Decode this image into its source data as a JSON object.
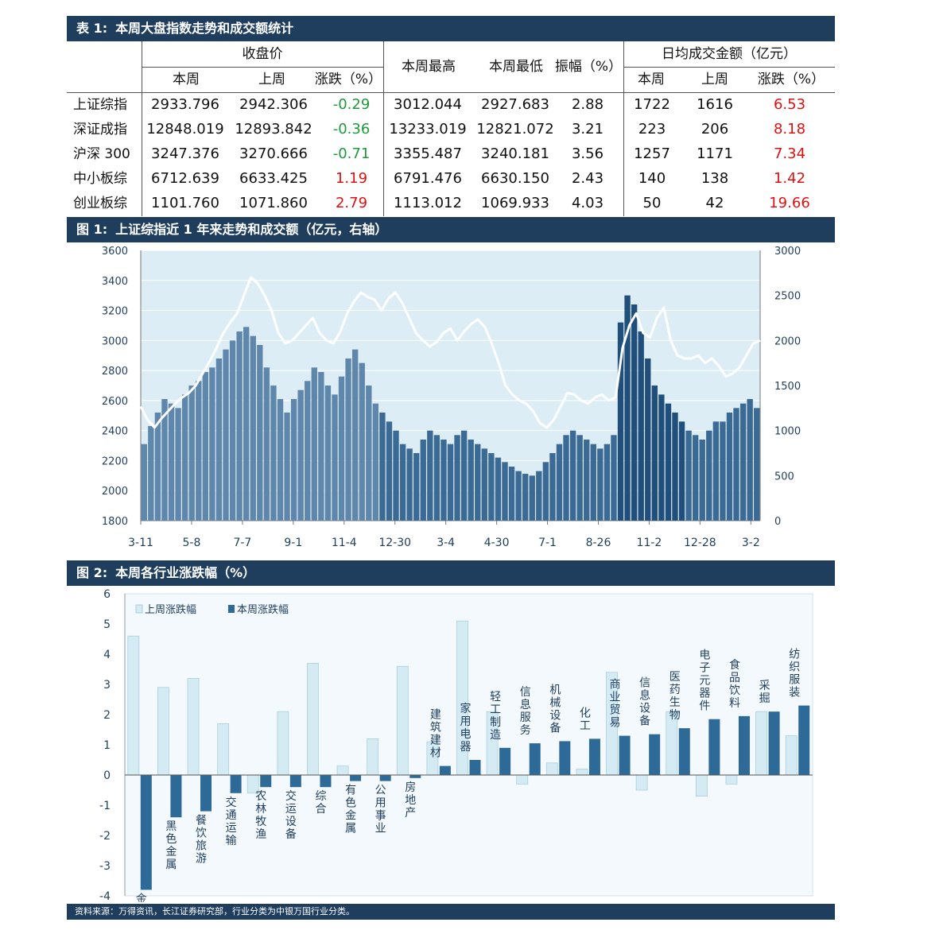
{
  "table1": {
    "title_num": "表 1:",
    "title": "本周大盘指数走势和成交额统计",
    "group_close": "收盘价",
    "group_high": "本周最高",
    "group_low": "本周最低",
    "group_amp": "振幅（%）",
    "group_vol": "日均成交金额（亿元）",
    "sub_this": "本周",
    "sub_last": "上周",
    "sub_chg": "涨跌（%）",
    "sub_vthis": "本周",
    "sub_vlast": "上周",
    "sub_vchg": "涨跌（%）",
    "rows": [
      {
        "name": "上证综指",
        "close": "2933.796",
        "last": "2942.306",
        "chg": "-0.29",
        "high": "3012.044",
        "low": "2927.683",
        "amp": "2.88",
        "vthis": "1722",
        "vlast": "1616",
        "vchg": "6.53"
      },
      {
        "name": "深证成指",
        "close": "12848.019",
        "last": "12893.842",
        "chg": "-0.36",
        "high": "13233.019",
        "low": "12821.072",
        "amp": "3.21",
        "vthis": "223",
        "vlast": "206",
        "vchg": "8.18"
      },
      {
        "name": "沪深 300",
        "close": "3247.376",
        "last": "3270.666",
        "chg": "-0.71",
        "high": "3355.487",
        "low": "3240.181",
        "amp": "3.56",
        "vthis": "1257",
        "vlast": "1171",
        "vchg": "7.34"
      },
      {
        "name": "中小板综",
        "close": "6712.639",
        "last": "6633.425",
        "chg": "1.19",
        "high": "6791.476",
        "low": "6630.150",
        "amp": "2.43",
        "vthis": "140",
        "vlast": "138",
        "vchg": "1.42"
      },
      {
        "name": "创业板综",
        "close": "1101.760",
        "last": "1071.860",
        "chg": "2.79",
        "high": "1113.012",
        "low": "1069.933",
        "amp": "4.03",
        "vthis": "50",
        "vlast": "42",
        "vchg": "19.66"
      }
    ]
  },
  "figure1": {
    "title_num": "图 1:",
    "title": "上证综指近 1 年来走势和成交额（亿元，右轴）"
  },
  "figure2": {
    "title_num": "图 2:",
    "title": "本周各行业涨跌幅（%）"
  },
  "footer": "资料来源：万得资讯，长江证券研究部，行业分类为中银万国行业分类。",
  "colors": {
    "header_bg": "#1f3e5e",
    "bar_dark": "#1f4f7a",
    "bar_light": "#c4e0ee",
    "plot_bg": "#dcedf5",
    "line": "#ffffff",
    "pos": "#e01010",
    "neg": "#1d9a3a"
  },
  "chart_data": [
    {
      "type": "line",
      "x_tick_labels": [
        "3-11",
        "5-8",
        "7-7",
        "9-1",
        "11-4",
        "12-30",
        "3-4",
        "4-30",
        "7-1",
        "8-26",
        "11-2",
        "12-28",
        "3-2"
      ],
      "ylim_left": [
        1800,
        3600
      ],
      "yticks_left": [
        1800,
        2000,
        2200,
        2400,
        2600,
        2800,
        3000,
        3200,
        3400,
        3600
      ],
      "ylim_right": [
        0,
        3000
      ],
      "yticks_right": [
        0,
        500,
        1000,
        1500,
        2000,
        2500,
        3000
      ],
      "grid": true,
      "series": [
        {
          "axis": "left",
          "values": [
            2560,
            2470,
            2420,
            2480,
            2530,
            2580,
            2620,
            2650,
            2700,
            2780,
            2860,
            2950,
            3050,
            3120,
            3180,
            3300,
            3420,
            3380,
            3300,
            3200,
            3050,
            2980,
            3000,
            3050,
            3100,
            3150,
            3050,
            3000,
            2980,
            3060,
            3180,
            3260,
            3320,
            3290,
            3270,
            3200,
            3280,
            3320,
            3250,
            3150,
            3050,
            3000,
            2960,
            2990,
            3050,
            3080,
            3000,
            3060,
            3110,
            3140,
            3090,
            2980,
            2850,
            2700,
            2640,
            2600,
            2580,
            2530,
            2450,
            2420,
            2470,
            2560,
            2650,
            2640,
            2600,
            2580,
            2620,
            2640,
            2600,
            2620,
            2950,
            3100,
            3180,
            3050,
            3020,
            3150,
            3220,
            3000,
            2900,
            2880,
            2880,
            2900,
            2850,
            2880,
            2830,
            2760,
            2780,
            2820,
            2900,
            2980,
            3000
          ]
        },
        {
          "type": "bar",
          "axis": "right",
          "values": [
            850,
            1050,
            1200,
            1350,
            1300,
            1250,
            1400,
            1500,
            1550,
            1650,
            1700,
            1800,
            1900,
            2000,
            2100,
            2150,
            2050,
            1950,
            1700,
            1500,
            1350,
            1200,
            1350,
            1450,
            1550,
            1700,
            1650,
            1500,
            1400,
            1600,
            1800,
            1900,
            1750,
            1500,
            1300,
            1200,
            1100,
            1000,
            850,
            800,
            750,
            900,
            1000,
            950,
            900,
            850,
            950,
            1000,
            900,
            850,
            800,
            750,
            700,
            650,
            600,
            550,
            520,
            500,
            550,
            650,
            750,
            850,
            950,
            1000,
            950,
            900,
            850,
            800,
            850,
            950,
            2200,
            2500,
            2400,
            2100,
            1800,
            1500,
            1400,
            1300,
            1200,
            1100,
            1000,
            950,
            900,
            1000,
            1100,
            1100,
            1200,
            1250,
            1300,
            1350,
            1250
          ]
        }
      ]
    },
    {
      "type": "bar",
      "legend": [
        "上周涨跌幅",
        "本周涨跌幅"
      ],
      "legend_position": "top-left",
      "ylim": [
        -4,
        6
      ],
      "yticks": [
        -4,
        -3,
        -2,
        -1,
        0,
        1,
        2,
        3,
        4,
        5,
        6
      ],
      "categories": [
        "金融服务",
        "黑色金属",
        "餐饮旅游",
        "交通运输",
        "农林牧渔",
        "交运设备",
        "综合",
        "有色金属",
        "公用事业",
        "房地产",
        "建筑建材",
        "家用电器",
        "轻工制造",
        "信息服务",
        "机械设备",
        "化工",
        "商业贸易",
        "信息设备",
        "医药生物",
        "电子元器件",
        "食品饮料",
        "采掘",
        "纺织服装"
      ],
      "series": [
        {
          "name": "上周涨跌幅",
          "values": [
            4.6,
            2.9,
            3.2,
            1.7,
            -0.6,
            2.1,
            3.7,
            0.3,
            1.2,
            3.6,
            1.1,
            5.1,
            2.1,
            -0.3,
            0.4,
            0.2,
            3.4,
            -0.5,
            2.1,
            -0.7,
            -0.3,
            2.1,
            1.3
          ]
        },
        {
          "name": "本周涨跌幅",
          "values": [
            -3.8,
            -1.4,
            -1.2,
            -0.6,
            -0.4,
            -0.4,
            -0.4,
            -0.2,
            -0.2,
            -0.1,
            0.3,
            0.5,
            0.9,
            1.05,
            1.12,
            1.2,
            1.3,
            1.35,
            1.55,
            1.85,
            1.95,
            2.1,
            2.3
          ]
        }
      ]
    }
  ]
}
